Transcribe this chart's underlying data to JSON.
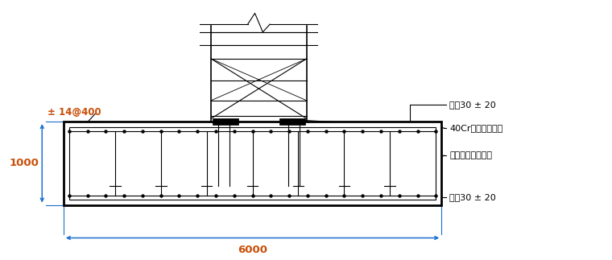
{
  "bg_color": "#ffffff",
  "lc": "#000000",
  "blue": "#1a6fcf",
  "orange": "#c8500a",
  "fw": 7.6,
  "fh": 3.23,
  "note_top": "双向30 ± 20",
  "note_bolt": "40Cr塔吊专用螺栓",
  "note_plate": "塔吊专用定位钢板",
  "note_bot": "双向30 ± 20",
  "dim_h": "1000",
  "dim_w": "6000",
  "rebar_label": "± 14@400"
}
